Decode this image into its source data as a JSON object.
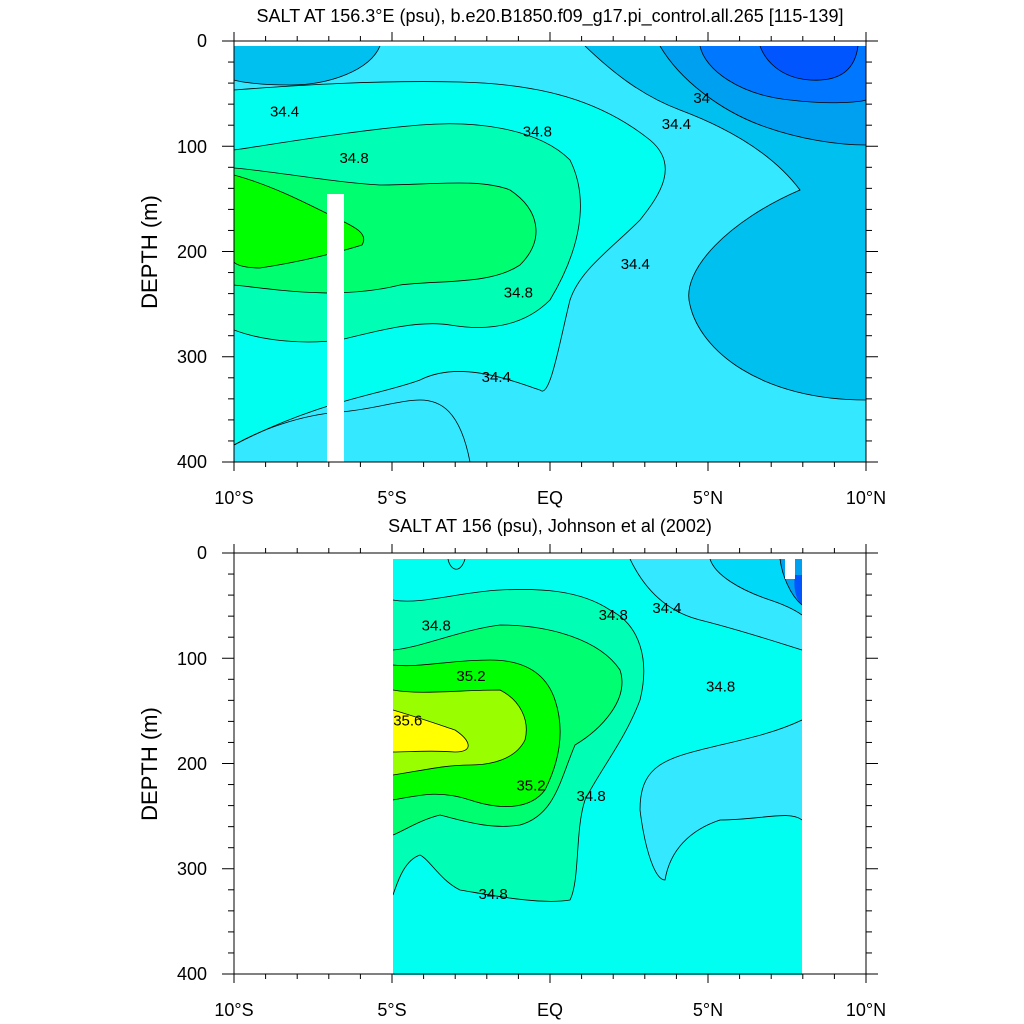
{
  "chart_data": [
    {
      "type": "heatmap",
      "title": "SALT AT 156.3°E (psu), b.e20.B1850.f09_g17.pi_control.all.265 [115-139]",
      "ylabel": "DEPTH (m)",
      "xlabel": "",
      "x_ticks": [
        "10°S",
        "5°S",
        "EQ",
        "5°N",
        "10°N"
      ],
      "y_ticks": [
        "0",
        "100",
        "200",
        "300",
        "400"
      ],
      "xlim": [
        -10,
        10
      ],
      "ylim": [
        400,
        0
      ],
      "colors": {
        "lt33.6": "#0055ff",
        "33.6-33.8": "#0077ff",
        "33.8-34.0": "#00a0f0",
        "34.0-34.2": "#00c0f0",
        "34.2-34.4": "#00daf8",
        "34.4-34.6": "#33e8ff",
        "34.6-34.8": "#00fff0",
        "34.8-35.0": "#00ffb4",
        "35.0-35.2": "#00ff70",
        "35.2-35.4": "#00ff00",
        "35.4-35.6": "#99ff00",
        "gt35.6": "#ffff00"
      },
      "contour_labels": [
        {
          "text": "34.4",
          "x": -8.4,
          "y": 68
        },
        {
          "text": "34.8",
          "x": -6.2,
          "y": 112
        },
        {
          "text": "34.8",
          "x": -0.4,
          "y": 87
        },
        {
          "text": "34",
          "x": 4.8,
          "y": 55
        },
        {
          "text": "34.4",
          "x": 4.0,
          "y": 80
        },
        {
          "text": "34.4",
          "x": 2.7,
          "y": 213
        },
        {
          "text": "34.8",
          "x": -1.0,
          "y": 240
        },
        {
          "text": "34.4",
          "x": -1.7,
          "y": 320
        }
      ]
    },
    {
      "type": "heatmap",
      "title": "SALT AT 156 (psu), Johnson et al (2002)",
      "ylabel": "DEPTH (m)",
      "xlabel": "",
      "x_ticks": [
        "10°S",
        "5°S",
        "EQ",
        "5°N",
        "10°N"
      ],
      "y_ticks": [
        "0",
        "100",
        "200",
        "300",
        "400"
      ],
      "xlim": [
        -10,
        10
      ],
      "ylim": [
        400,
        0
      ],
      "data_xrange": [
        -5,
        8
      ],
      "contour_labels": [
        {
          "text": "34.8",
          "x": -3.6,
          "y": 70
        },
        {
          "text": "34.8",
          "x": 2.0,
          "y": 60
        },
        {
          "text": "34.4",
          "x": 3.7,
          "y": 53
        },
        {
          "text": "35.2",
          "x": -2.5,
          "y": 118
        },
        {
          "text": "34.8",
          "x": 5.4,
          "y": 128
        },
        {
          "text": "35.6",
          "x": -4.5,
          "y": 160
        },
        {
          "text": "35.2",
          "x": -0.6,
          "y": 222
        },
        {
          "text": "34.8",
          "x": 1.3,
          "y": 232
        },
        {
          "text": "34.8",
          "x": -1.8,
          "y": 325
        }
      ]
    }
  ]
}
